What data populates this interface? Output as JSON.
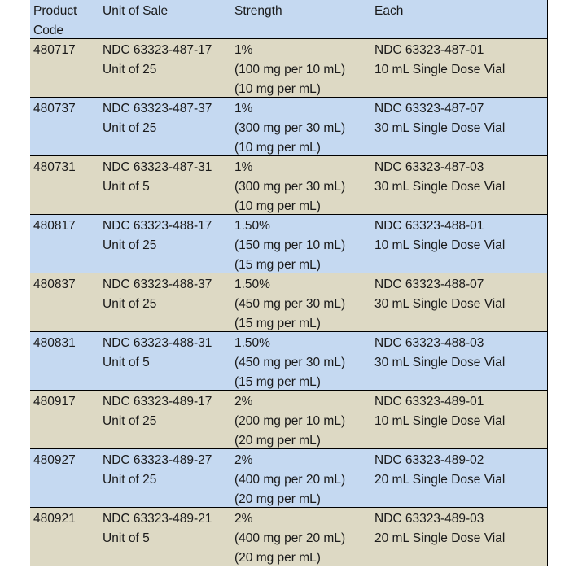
{
  "colors": {
    "header": "#c5d9f1",
    "row_tan": "#ddd9c4",
    "row_blue": "#c5d9f1"
  },
  "headers": [
    "Product Code",
    "Unit of Sale",
    "Strength",
    "Each"
  ],
  "header_lines": [
    [
      "Product",
      "Code"
    ],
    [
      "Unit of Sale"
    ],
    [
      "Strength"
    ],
    [
      "Each"
    ]
  ],
  "rows": [
    {
      "code": "480717",
      "unit": [
        "NDC 63323-487-17",
        "Unit of 25"
      ],
      "strength": [
        "1%",
        "(100 mg per 10 mL)",
        "(10 mg per mL)"
      ],
      "each": [
        "NDC 63323-487-01",
        "10 mL Single Dose Vial"
      ]
    },
    {
      "code": "480737",
      "unit": [
        "NDC 63323-487-37",
        "Unit of 25"
      ],
      "strength": [
        "1%",
        "(300 mg per 30 mL)",
        "(10 mg per mL)"
      ],
      "each": [
        "NDC 63323-487-07",
        "30 mL Single Dose Vial"
      ]
    },
    {
      "code": "480731",
      "unit": [
        "NDC 63323-487-31",
        "Unit of 5"
      ],
      "strength": [
        "1%",
        "(300 mg per 30 mL)",
        "(10 mg per mL)"
      ],
      "each": [
        "NDC 63323-487-03",
        "30 mL Single Dose Vial"
      ]
    },
    {
      "code": "480817",
      "unit": [
        "NDC 63323-488-17",
        "Unit of 25"
      ],
      "strength": [
        "1.50%",
        "(150 mg per 10 mL)",
        "(15 mg per mL)"
      ],
      "each": [
        "NDC 63323-488-01",
        "10 mL Single Dose Vial"
      ]
    },
    {
      "code": "480837",
      "unit": [
        "NDC 63323-488-37",
        "Unit of 25"
      ],
      "strength": [
        "1.50%",
        "(450 mg per 30 mL)",
        "(15 mg per mL)"
      ],
      "each": [
        "NDC 63323-488-07",
        "30 mL Single Dose Vial"
      ]
    },
    {
      "code": "480831",
      "unit": [
        "NDC 63323-488-31",
        "Unit of 5"
      ],
      "strength": [
        "1.50%",
        "(450 mg per 30 mL)",
        "(15 mg per mL)"
      ],
      "each": [
        "NDC 63323-488-03",
        "30 mL Single Dose Vial"
      ]
    },
    {
      "code": "480917",
      "unit": [
        "NDC 63323-489-17",
        "Unit of 25"
      ],
      "strength": [
        "2%",
        "(200 mg per 10 mL)",
        "(20 mg per mL)"
      ],
      "each": [
        "NDC 63323-489-01",
        "10 mL Single Dose Vial"
      ]
    },
    {
      "code": "480927",
      "unit": [
        "NDC 63323-489-27",
        "Unit of 25"
      ],
      "strength": [
        "2%",
        "(400 mg per 20 mL)",
        "(20 mg per mL)"
      ],
      "each": [
        "NDC 63323-489-02",
        "20 mL Single Dose Vial"
      ]
    },
    {
      "code": "480921",
      "unit": [
        "NDC 63323-489-21",
        "Unit of 5"
      ],
      "strength": [
        "2%",
        "(400 mg per 20 mL)",
        "(20 mg per mL)"
      ],
      "each": [
        "NDC 63323-489-03",
        "20 mL Single Dose Vial"
      ]
    }
  ]
}
